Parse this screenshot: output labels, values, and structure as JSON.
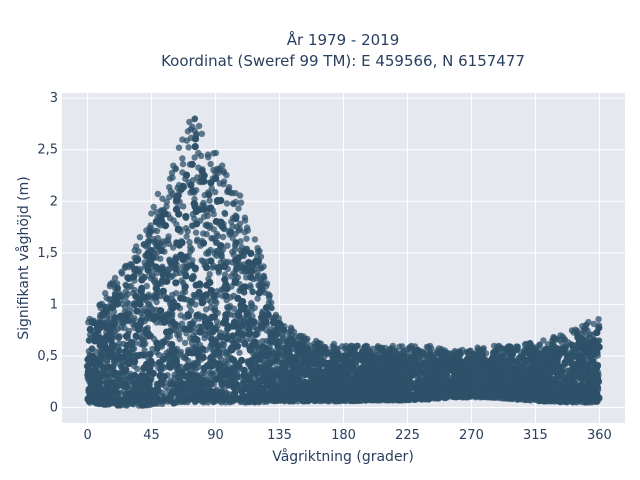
{
  "chart_data": {
    "type": "scatter",
    "title_line1": "År 1979 - 2019",
    "title_line2": "Koordinat (Sweref 99 TM): E 459566, N 6157477",
    "xlabel": "Vågriktning (grader)",
    "ylabel": "Signifikant våghöjd (m)",
    "xlim": [
      -18,
      378
    ],
    "ylim": [
      -0.15,
      3.05
    ],
    "x_ticks": [
      0,
      45,
      90,
      135,
      180,
      225,
      270,
      315,
      360
    ],
    "x_tick_labels": [
      "0",
      "45",
      "90",
      "135",
      "180",
      "225",
      "270",
      "315",
      "360"
    ],
    "y_ticks": [
      0,
      0.5,
      1,
      1.5,
      2,
      2.5,
      3
    ],
    "y_tick_labels": [
      "0",
      "0,5",
      "1",
      "1,5",
      "2",
      "2,5",
      "3"
    ],
    "grid": true,
    "marker_color": "#2e5169",
    "envelope": {
      "x": [
        0,
        10,
        20,
        30,
        40,
        50,
        60,
        70,
        75,
        80,
        90,
        100,
        110,
        120,
        130,
        140,
        150,
        160,
        180,
        200,
        220,
        240,
        260,
        280,
        300,
        320,
        340,
        360
      ],
      "y_max": [
        0.85,
        1.05,
        1.3,
        1.5,
        1.8,
        2.1,
        2.35,
        2.75,
        2.95,
        2.7,
        2.5,
        2.2,
        2.0,
        1.6,
        1.0,
        0.8,
        0.72,
        0.65,
        0.6,
        0.6,
        0.6,
        0.6,
        0.55,
        0.6,
        0.6,
        0.65,
        0.75,
        0.88
      ],
      "y_min": [
        0.05,
        0.03,
        0.02,
        0.02,
        0.02,
        0.03,
        0.04,
        0.05,
        0.05,
        0.05,
        0.05,
        0.05,
        0.05,
        0.05,
        0.06,
        0.06,
        0.06,
        0.06,
        0.06,
        0.07,
        0.07,
        0.08,
        0.1,
        0.1,
        0.08,
        0.06,
        0.05,
        0.05
      ]
    }
  }
}
